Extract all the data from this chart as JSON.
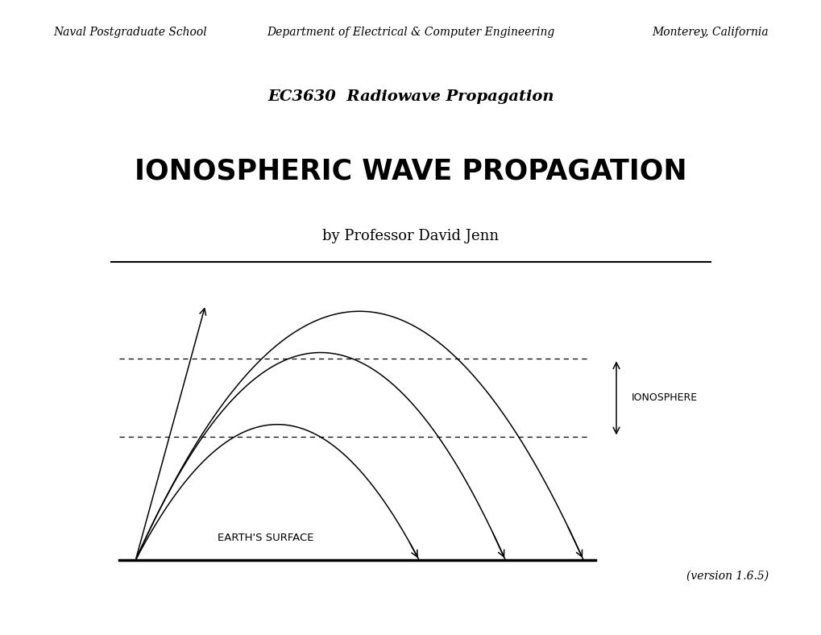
{
  "bg_color": "#ffffff",
  "text_color": "#000000",
  "header_left": "Naval Postgraduate School",
  "header_center": "Department of Electrical & Computer Engineering",
  "header_right": "Monterey, California",
  "subtitle": "EC3630  Radiowave Propagation",
  "title": "IONOSPHERIC WAVE PROPAGATION",
  "author": "by Professor David Jenn",
  "version": "(version 1.6.5)",
  "label_ionosphere": "IONOSPHERE",
  "label_earth": "EARTH'S SURFACE"
}
